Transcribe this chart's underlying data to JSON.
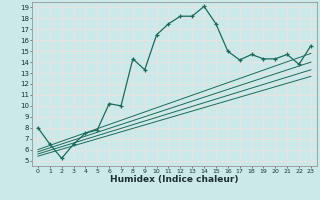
{
  "xlabel": "Humidex (Indice chaleur)",
  "background_color": "#cce9e9",
  "grid_color": "#dff0f0",
  "line_color": "#1a6b5a",
  "xlim": [
    -0.5,
    23.5
  ],
  "ylim": [
    4.5,
    19.5
  ],
  "xticks": [
    0,
    1,
    2,
    3,
    4,
    5,
    6,
    7,
    8,
    9,
    10,
    11,
    12,
    13,
    14,
    15,
    16,
    17,
    18,
    19,
    20,
    21,
    22,
    23
  ],
  "yticks": [
    5,
    6,
    7,
    8,
    9,
    10,
    11,
    12,
    13,
    14,
    15,
    16,
    17,
    18,
    19
  ],
  "main_series": [
    [
      0,
      8.0
    ],
    [
      1,
      6.5
    ],
    [
      2,
      5.2
    ],
    [
      3,
      6.5
    ],
    [
      4,
      7.5
    ],
    [
      5,
      7.8
    ],
    [
      6,
      10.2
    ],
    [
      7,
      10.0
    ],
    [
      8,
      14.3
    ],
    [
      9,
      13.3
    ],
    [
      10,
      16.5
    ],
    [
      11,
      17.5
    ],
    [
      12,
      18.2
    ],
    [
      13,
      18.2
    ],
    [
      14,
      19.1
    ],
    [
      15,
      17.5
    ],
    [
      16,
      15.0
    ],
    [
      17,
      14.2
    ],
    [
      18,
      14.7
    ],
    [
      19,
      14.3
    ],
    [
      20,
      14.3
    ],
    [
      21,
      14.7
    ],
    [
      22,
      13.8
    ],
    [
      23,
      15.5
    ]
  ],
  "linear_lines": [
    [
      [
        0,
        6.0
      ],
      [
        23,
        14.8
      ]
    ],
    [
      [
        0,
        5.8
      ],
      [
        23,
        14.0
      ]
    ],
    [
      [
        0,
        5.6
      ],
      [
        23,
        13.3
      ]
    ],
    [
      [
        0,
        5.4
      ],
      [
        23,
        12.7
      ]
    ]
  ]
}
